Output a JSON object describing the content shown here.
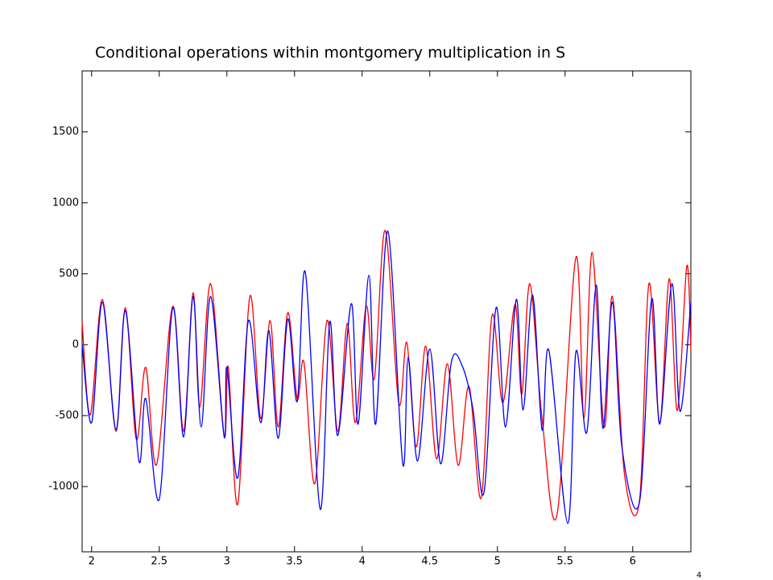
{
  "chart_data": {
    "type": "line",
    "title": "Conditional operations within montgomery multiplication in S",
    "x_exponent": "4",
    "xlim": [
      1.93,
      6.43
    ],
    "xticks": [
      2,
      2.5,
      3,
      3.5,
      4,
      4.5,
      5,
      5.5,
      6
    ],
    "ylim": [
      -1460,
      1930
    ],
    "yticks": [
      -1000,
      -500,
      0,
      500,
      1000,
      1500
    ],
    "series": [
      {
        "color": "#ff0000",
        "x": [
          1.93,
          1.99,
          2.08,
          2.18,
          2.25,
          2.33,
          2.4,
          2.48,
          2.6,
          2.68,
          2.75,
          2.8,
          2.88,
          2.98,
          3.01,
          3.08,
          3.17,
          3.25,
          3.32,
          3.38,
          3.45,
          3.52,
          3.57,
          3.65,
          3.74,
          3.82,
          3.89,
          3.95,
          4.03,
          4.09,
          4.17,
          4.27,
          4.33,
          4.4,
          4.47,
          4.55,
          4.63,
          4.71,
          4.79,
          4.88,
          4.96,
          5.04,
          5.13,
          5.18,
          5.24,
          5.33,
          5.44,
          5.58,
          5.64,
          5.7,
          5.79,
          5.85,
          5.94,
          6.05,
          6.12,
          6.2,
          6.27,
          6.33,
          6.4,
          6.43
        ],
        "values": [
          160,
          -495,
          318,
          -610,
          260,
          -665,
          -160,
          -845,
          270,
          -610,
          365,
          -440,
          430,
          -640,
          -155,
          -1125,
          340,
          -520,
          170,
          -580,
          225,
          -380,
          -125,
          -980,
          170,
          -610,
          150,
          -550,
          270,
          -240,
          805,
          -410,
          15,
          -720,
          -10,
          -805,
          -135,
          -850,
          -295,
          -1080,
          205,
          -410,
          285,
          -350,
          430,
          -520,
          -1200,
          615,
          -520,
          650,
          -580,
          340,
          -920,
          -1100,
          430,
          -550,
          465,
          -465,
          555,
          -40
        ]
      },
      {
        "color": "#0000ff",
        "x": [
          1.93,
          2.0,
          2.08,
          2.18,
          2.25,
          2.35,
          2.4,
          2.5,
          2.6,
          2.68,
          2.75,
          2.81,
          2.88,
          2.98,
          3.0,
          3.08,
          3.16,
          3.25,
          3.31,
          3.38,
          3.45,
          3.52,
          3.58,
          3.69,
          3.76,
          3.82,
          3.92,
          3.97,
          4.05,
          4.1,
          4.19,
          4.3,
          4.34,
          4.41,
          4.5,
          4.58,
          4.66,
          4.74,
          4.82,
          4.9,
          4.99,
          5.06,
          5.14,
          5.19,
          5.26,
          5.33,
          5.38,
          5.52,
          5.58,
          5.66,
          5.73,
          5.78,
          5.85,
          5.92,
          6.05,
          6.14,
          6.2,
          6.29,
          6.35,
          6.43
        ],
        "values": [
          0,
          -550,
          300,
          -600,
          240,
          -820,
          -380,
          -1090,
          260,
          -650,
          340,
          -580,
          340,
          -650,
          -160,
          -940,
          170,
          -550,
          100,
          -660,
          180,
          -400,
          510,
          -1160,
          160,
          -640,
          290,
          -560,
          490,
          -560,
          800,
          -840,
          -90,
          -820,
          -30,
          -840,
          -120,
          -150,
          -460,
          -1045,
          260,
          -580,
          320,
          -460,
          350,
          -600,
          -40,
          -1260,
          -50,
          -620,
          420,
          -590,
          300,
          -720,
          -1110,
          320,
          -560,
          430,
          -470,
          300
        ]
      }
    ]
  }
}
